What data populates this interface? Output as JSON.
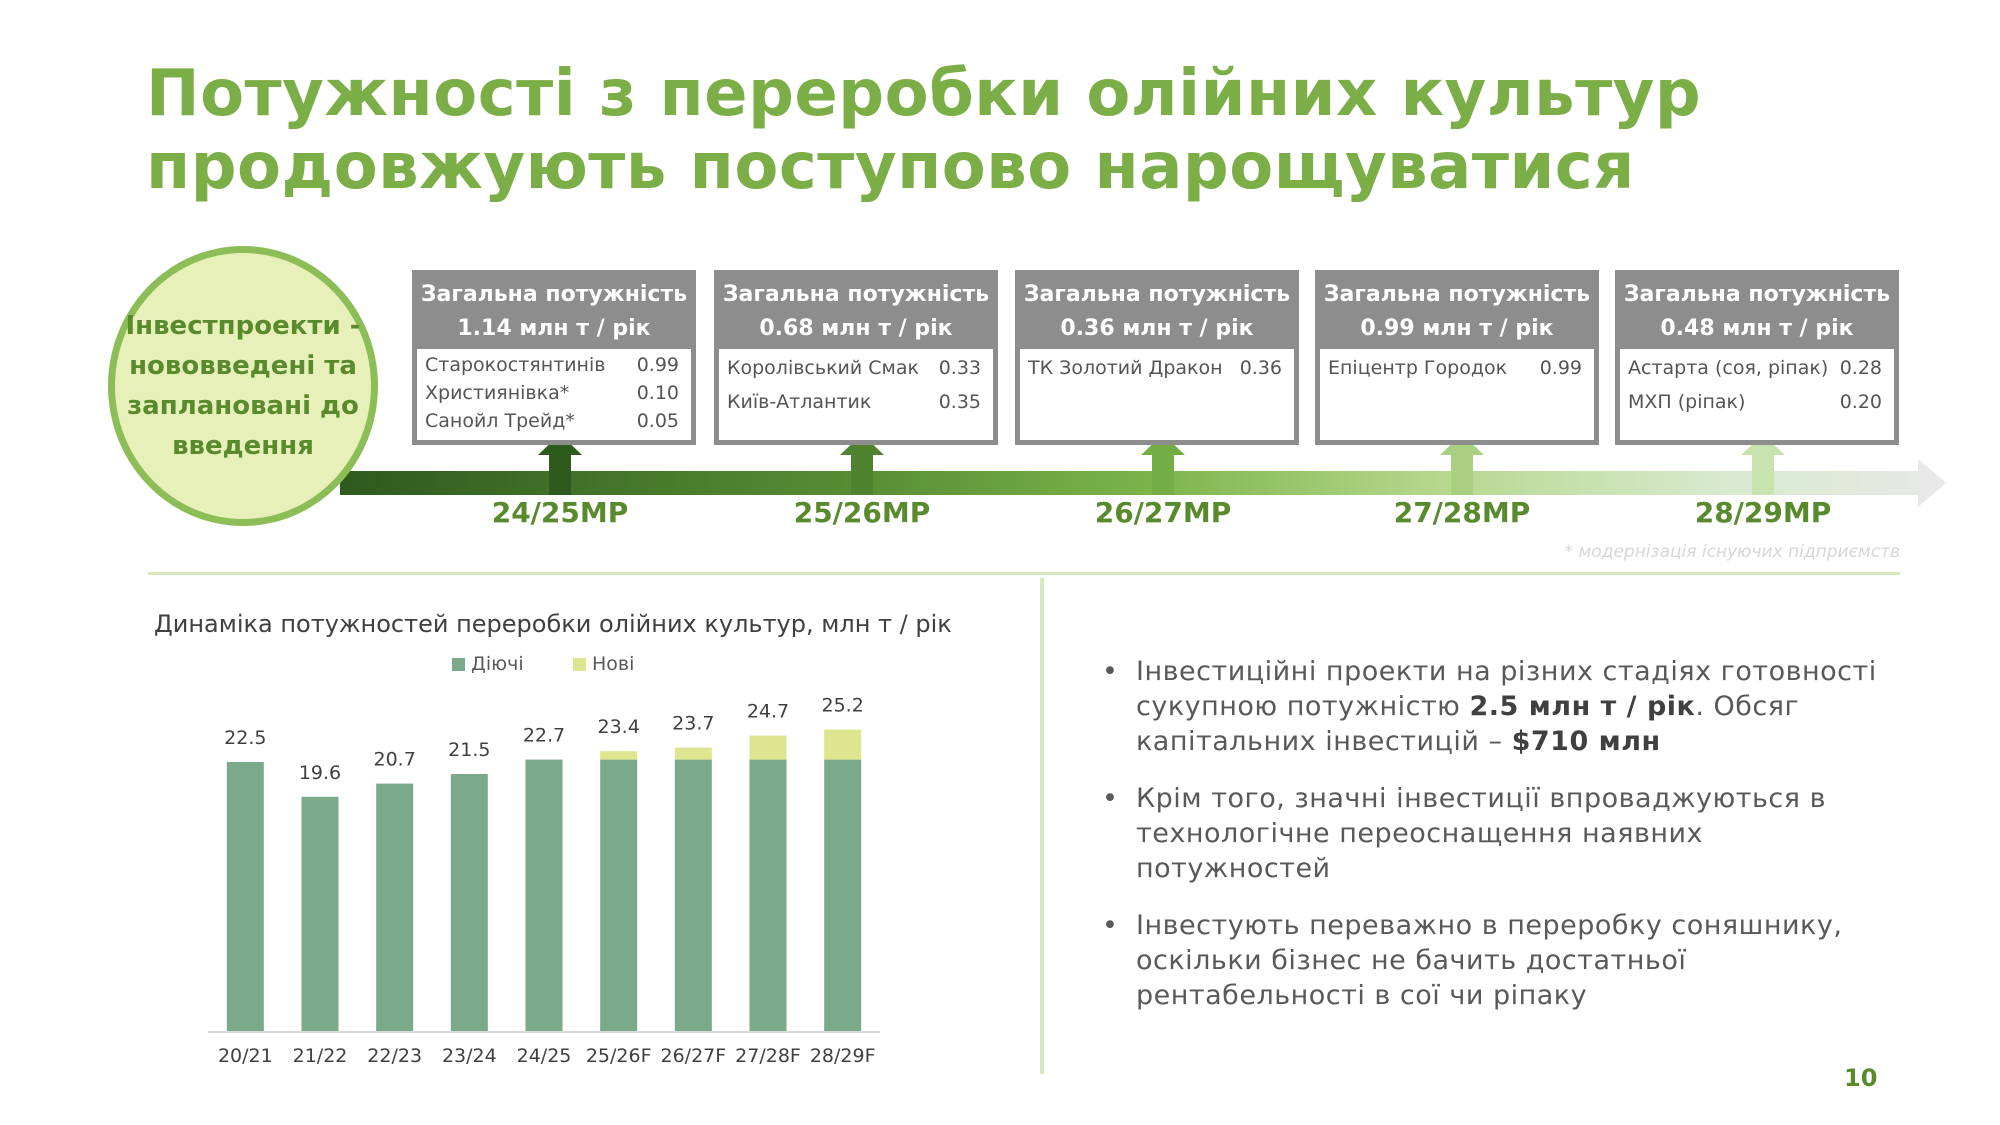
{
  "title_line1": "Потужності з переробки олійних культур",
  "title_line2": "продовжують поступово нарощуватися",
  "circle_text": "Інвестпроекти - нововведені та заплановані до введення",
  "colors": {
    "accent": "#7cae47",
    "box_gray": "#8d8d8d",
    "bar_existing": "#7aaa8a",
    "bar_new": "#dde58e"
  },
  "timeline": [
    {
      "label": "24/25МР",
      "head1": "Загальна потужність",
      "head2": "1.14 млн т / рік",
      "rows": [
        {
          "name": "Старокостянтинів",
          "value": "0.99"
        },
        {
          "name": "Християнівка*",
          "value": "0.10"
        },
        {
          "name": "Санойл Трейд*",
          "value": "0.05"
        }
      ]
    },
    {
      "label": "25/26МР",
      "head1": "Загальна потужність",
      "head2": "0.68 млн т / рік",
      "rows": [
        {
          "name": "Королівський Смак",
          "value": "0.33"
        },
        {
          "name": "Київ-Атлантик",
          "value": "0.35"
        }
      ]
    },
    {
      "label": "26/27МР",
      "head1": "Загальна потужність",
      "head2": "0.36 млн т / рік",
      "rows": [
        {
          "name": "ТК Золотий Дракон",
          "value": "0.36"
        }
      ]
    },
    {
      "label": "27/28МР",
      "head1": "Загальна потужність",
      "head2": "0.99 млн т / рік",
      "rows": [
        {
          "name": "Епіцентр Городок",
          "value": "0.99"
        }
      ]
    },
    {
      "label": "28/29МР",
      "head1": "Загальна потужність",
      "head2": "0.48 млн т / рік",
      "rows": [
        {
          "name": "Астарта (соя, ріпак)",
          "value": "0.28"
        },
        {
          "name": "МХП (ріпак)",
          "value": "0.20"
        }
      ]
    }
  ],
  "footnote": "* модернізація існуючих підприємств",
  "chart_title": "Динаміка потужностей переробки олійних культур,  млн т / рік",
  "chart_data": {
    "type": "bar",
    "stacked": true,
    "categories": [
      "20/21",
      "21/22",
      "22/23",
      "23/24",
      "24/25",
      "25/26F",
      "26/27F",
      "27/28F",
      "28/29F"
    ],
    "series": [
      {
        "name": "Діючі",
        "values": [
          22.5,
          19.6,
          20.7,
          21.5,
          22.7,
          22.7,
          22.7,
          22.7,
          22.7
        ]
      },
      {
        "name": "Нові",
        "values": [
          0,
          0,
          0,
          0,
          0,
          0.7,
          1.0,
          2.0,
          2.5
        ]
      }
    ],
    "totals": [
      "22.5",
      "19.6",
      "20.7",
      "21.5",
      "22.7",
      "23.4",
      "23.7",
      "24.7",
      "25.2"
    ],
    "ylim": [
      0,
      26
    ],
    "legend_position": "top",
    "grid": false
  },
  "bullets": [
    {
      "parts": [
        {
          "t": "Інвестиційні проекти на різних стадіях готовності сукупною потужністю ",
          "b": false
        },
        {
          "t": "2.5 млн т / рік",
          "b": true
        },
        {
          "t": ". Обсяг капітальних інвестицій – ",
          "b": false
        },
        {
          "t": "$710 млн",
          "b": true
        }
      ]
    },
    {
      "parts": [
        {
          "t": "Крім того, значні інвестиції впроваджуються в технологічне переоснащення наявних потужностей",
          "b": false
        }
      ]
    },
    {
      "parts": [
        {
          "t": "Інвестують переважно в переробку соняшнику, оскільки бізнес не бачить достатньої рентабельності в сої чи ріпаку",
          "b": false
        }
      ]
    }
  ],
  "bullet_symbol": "•",
  "page_number": "10"
}
